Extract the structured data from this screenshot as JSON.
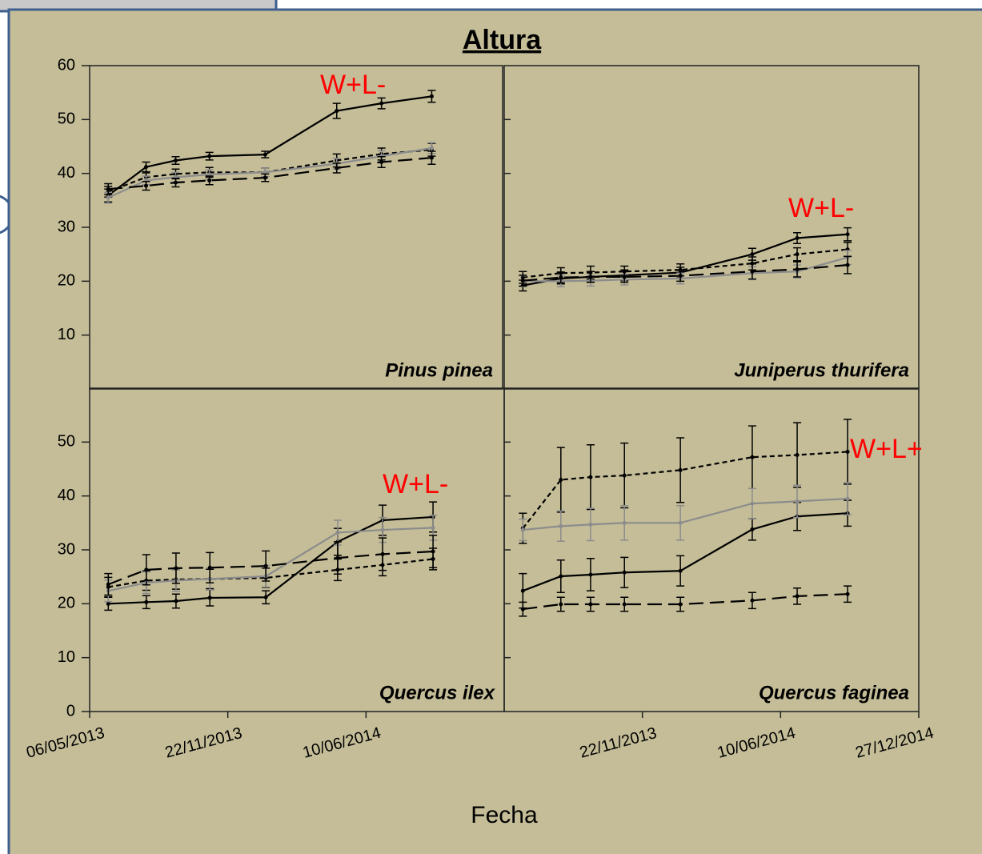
{
  "title": "Altura",
  "x_label": "Fecha",
  "chart_data": [
    {
      "type": "line",
      "label": "Pinus pinea",
      "annotation": "W+L-",
      "xlim": [
        "06/05/2013",
        "27/12/2014"
      ],
      "xticks": [],
      "ylim": [
        0,
        60
      ],
      "yticks": [
        10,
        20,
        30,
        40,
        50,
        60
      ],
      "ytick_labels": true,
      "x": [
        "02/06/2013",
        "27/07/2013",
        "08/09/2013",
        "27/10/2013",
        "16/01/2014",
        "30/04/2014",
        "04/07/2014",
        "15/09/2014"
      ],
      "series": [
        {
          "color": "#000000",
          "dash": "solid",
          "values": [
            35.9,
            41.2,
            42.4,
            43.2,
            43.5,
            51.6,
            53.0,
            54.3
          ],
          "errors": [
            1.2,
            0.9,
            0.7,
            0.7,
            0.6,
            1.4,
            1.0,
            1.1
          ]
        },
        {
          "color": "#000000",
          "dash": "dotted",
          "values": [
            36.6,
            39.3,
            39.9,
            40.2,
            40.2,
            42.4,
            43.6,
            44.4
          ],
          "errors": [
            1.0,
            0.8,
            0.9,
            0.9,
            0.8,
            1.2,
            1.1,
            1.2
          ]
        },
        {
          "color": "#8c8c8c",
          "dash": "solid",
          "values": [
            35.5,
            38.7,
            39.3,
            39.8,
            40.2,
            41.8,
            43.2,
            44.7
          ],
          "errors": [
            1.0,
            0.8,
            0.9,
            0.9,
            0.8,
            1.0,
            1.0,
            1.0
          ]
        },
        {
          "color": "#000000",
          "dash": "dashed",
          "values": [
            37.1,
            37.7,
            38.3,
            38.7,
            39.2,
            41.0,
            42.1,
            42.9
          ],
          "errors": [
            1.0,
            0.8,
            0.8,
            0.8,
            0.7,
            0.9,
            1.0,
            1.2
          ]
        }
      ]
    },
    {
      "type": "line",
      "label": "Juniperus thurifera",
      "annotation": "W+L-",
      "xlim": [
        "06/05/2013",
        "27/12/2014"
      ],
      "xticks": [],
      "ylim": [
        0,
        60
      ],
      "yticks": [
        10,
        20,
        30,
        40,
        50
      ],
      "ytick_labels": false,
      "x": [
        "02/06/2013",
        "27/07/2013",
        "08/09/2013",
        "27/10/2013",
        "16/01/2014",
        "30/04/2014",
        "04/07/2014",
        "15/09/2014"
      ],
      "series": [
        {
          "color": "#000000",
          "dash": "solid",
          "values": [
            19.2,
            20.5,
            20.8,
            21.1,
            21.6,
            25.0,
            28.0,
            28.7
          ],
          "errors": [
            1.0,
            1.0,
            1.0,
            1.0,
            1.0,
            1.1,
            1.0,
            1.2
          ]
        },
        {
          "color": "#000000",
          "dash": "dotted",
          "values": [
            20.7,
            21.5,
            21.6,
            21.8,
            22.1,
            23.3,
            25.0,
            25.9
          ],
          "errors": [
            1.1,
            1.0,
            1.2,
            1.0,
            1.1,
            1.2,
            1.2,
            1.3
          ]
        },
        {
          "color": "#8c8c8c",
          "dash": "solid",
          "values": [
            20.0,
            20.0,
            20.1,
            20.3,
            20.5,
            21.5,
            21.8,
            24.4
          ],
          "errors": [
            1.0,
            1.0,
            1.0,
            1.0,
            1.0,
            1.2,
            1.2,
            1.3
          ]
        },
        {
          "color": "#000000",
          "dash": "dashed",
          "values": [
            20.1,
            20.7,
            20.8,
            20.8,
            21.0,
            21.8,
            22.2,
            23.0
          ],
          "errors": [
            1.0,
            1.0,
            1.0,
            1.0,
            1.0,
            1.4,
            1.4,
            1.6
          ]
        }
      ]
    },
    {
      "type": "line",
      "label": "Quercus ilex",
      "annotation": "W+L-",
      "xlim": [
        "06/05/2013",
        "27/12/2014"
      ],
      "xticks": [
        "06/05/2013",
        "22/11/2013",
        "10/06/2014"
      ],
      "ylim": [
        0,
        60
      ],
      "yticks": [
        0,
        10,
        20,
        30,
        40,
        50
      ],
      "ytick_labels": true,
      "x": [
        "02/06/2013",
        "27/07/2013",
        "08/09/2013",
        "27/10/2013",
        "16/01/2014",
        "30/04/2014",
        "04/07/2014",
        "15/09/2014"
      ],
      "series": [
        {
          "color": "#000000",
          "dash": "solid",
          "values": [
            20.0,
            20.3,
            20.5,
            21.1,
            21.2,
            31.5,
            35.5,
            36.1
          ],
          "errors": [
            1.2,
            1.2,
            1.3,
            1.5,
            1.2,
            2.5,
            2.8,
            2.8
          ]
        },
        {
          "color": "#000000",
          "dash": "dotted",
          "values": [
            23.1,
            24.3,
            24.5,
            24.6,
            24.8,
            26.3,
            27.2,
            28.3
          ],
          "errors": [
            1.8,
            1.8,
            1.8,
            1.8,
            1.8,
            2.0,
            2.0,
            2.0
          ]
        },
        {
          "color": "#8c8c8c",
          "dash": "solid",
          "values": [
            22.4,
            23.9,
            24.3,
            24.6,
            25.1,
            33.2,
            33.7,
            34.1
          ],
          "errors": [
            2.0,
            2.0,
            2.0,
            2.0,
            2.0,
            2.3,
            2.3,
            2.3
          ]
        },
        {
          "color": "#000000",
          "dash": "dashed",
          "values": [
            23.6,
            26.3,
            26.6,
            26.7,
            27.0,
            28.5,
            29.2,
            29.7
          ],
          "errors": [
            2.0,
            2.8,
            2.8,
            2.8,
            2.8,
            3.0,
            3.0,
            3.0
          ]
        }
      ]
    },
    {
      "type": "line",
      "label": "Quercus faginea",
      "annotation": "W+L+",
      "xlim": [
        "06/05/2013",
        "27/12/2014"
      ],
      "xticks": [
        "22/11/2013",
        "10/06/2014",
        "27/12/2014"
      ],
      "ylim": [
        0,
        60
      ],
      "yticks": [
        10,
        20,
        30,
        40,
        50
      ],
      "ytick_labels": false,
      "x": [
        "02/06/2013",
        "27/07/2013",
        "08/09/2013",
        "27/10/2013",
        "16/01/2014",
        "30/04/2014",
        "04/07/2014",
        "15/09/2014"
      ],
      "series": [
        {
          "color": "#000000",
          "dash": "solid",
          "values": [
            22.4,
            25.1,
            25.4,
            25.8,
            26.1,
            33.8,
            36.2,
            36.8
          ],
          "errors": [
            3.2,
            3.0,
            3.0,
            2.8,
            2.8,
            2.0,
            2.6,
            2.4
          ]
        },
        {
          "color": "#000000",
          "dash": "dotted",
          "values": [
            34.0,
            43.0,
            43.5,
            43.8,
            44.8,
            47.2,
            47.6,
            48.2
          ],
          "errors": [
            2.8,
            6.0,
            6.0,
            6.0,
            6.0,
            5.8,
            6.0,
            6.0
          ]
        },
        {
          "color": "#8c8c8c",
          "dash": "solid",
          "values": [
            33.7,
            34.4,
            34.7,
            35.0,
            35.0,
            38.6,
            39.0,
            39.5
          ],
          "errors": [
            2.0,
            2.8,
            3.0,
            3.2,
            3.2,
            2.8,
            3.0,
            3.0
          ]
        },
        {
          "color": "#000000",
          "dash": "dashed",
          "values": [
            19.0,
            19.9,
            19.9,
            19.9,
            19.9,
            20.6,
            21.4,
            21.8
          ],
          "errors": [
            1.3,
            1.3,
            1.3,
            1.3,
            1.3,
            1.5,
            1.5,
            1.5
          ]
        }
      ]
    }
  ]
}
